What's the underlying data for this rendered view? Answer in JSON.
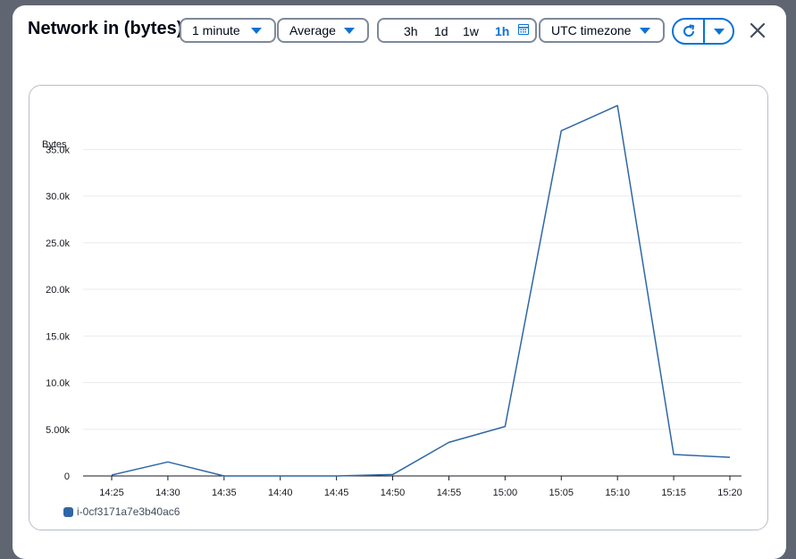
{
  "dialog": {
    "title": "Network in (bytes)",
    "period_select": "1 minute",
    "statistic_select": "Average",
    "time_ranges": [
      "3h",
      "1d",
      "1w",
      "1h"
    ],
    "active_range": "1h",
    "timezone_select": "UTC timezone",
    "refresh_icon": "refresh-icon",
    "calendar_icon": "calendar-icon",
    "close_icon": "close-icon"
  },
  "colors": {
    "accent": "#0972d3",
    "series": "#2f67a4"
  },
  "chart_data": {
    "type": "line",
    "title": "",
    "ylabel": "Bytes",
    "xlabel": "",
    "x": [
      "14:25",
      "14:30",
      "14:35",
      "14:40",
      "14:45",
      "14:50",
      "14:55",
      "15:00",
      "15:05",
      "15:10",
      "15:15",
      "15:20"
    ],
    "ylim": [
      0,
      38000
    ],
    "yticks": [
      0,
      5000,
      10000,
      15000,
      20000,
      25000,
      30000,
      35000
    ],
    "ytick_labels": [
      "0",
      "5.00k",
      "10.0k",
      "15.0k",
      "20.0k",
      "25.0k",
      "30.0k",
      "35.0k"
    ],
    "grid": true,
    "legend_position": "bottom-left",
    "series": [
      {
        "name": "i-0cf3171a7e3b40ac6",
        "values": [
          100,
          1500,
          0,
          0,
          0,
          150,
          3600,
          5300,
          37000,
          39700,
          2300,
          2000
        ]
      }
    ]
  }
}
